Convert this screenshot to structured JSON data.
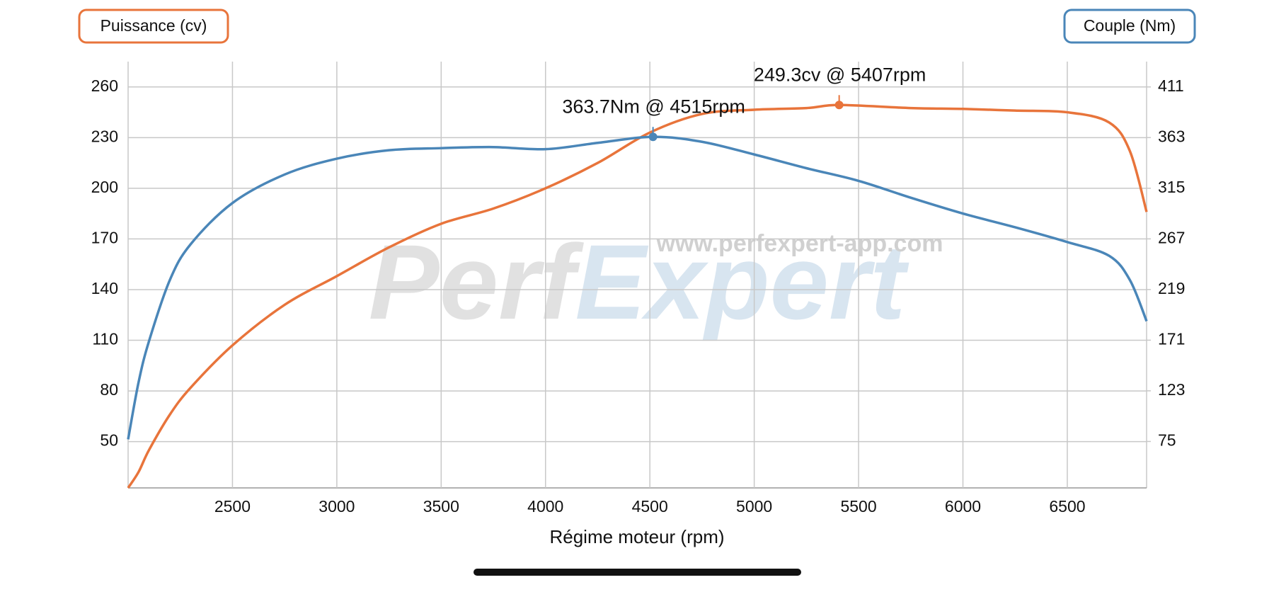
{
  "chart_data": {
    "type": "line",
    "left_axis_label": "Puissance (cv)",
    "right_axis_label": "Couple (Nm)",
    "x_label": "Régime moteur (rpm)",
    "watermark": [
      "Perf",
      "Expert"
    ],
    "watermark_url": "www.perfexpert-app.com",
    "xlim": [
      2000,
      6880
    ],
    "xticks": [
      2500,
      3000,
      3500,
      4000,
      4500,
      5000,
      5500,
      6000,
      6500
    ],
    "ylim": [
      22.6,
      275
    ],
    "yticks": [
      50,
      80,
      110,
      140,
      170,
      200,
      230,
      260
    ],
    "y2lim": [
      31,
      435
    ],
    "y2ticks": [
      75,
      123,
      171,
      219,
      267,
      315,
      363,
      411
    ],
    "grid": true,
    "series": [
      {
        "name": "Puissance (cv)",
        "color": "#e8743b",
        "x": [
          2000,
          2050,
          2100,
          2200,
          2300,
          2500,
          2750,
          3000,
          3250,
          3500,
          3750,
          4000,
          4250,
          4500,
          4750,
          5000,
          5250,
          5407,
          5750,
          6000,
          6250,
          6500,
          6700,
          6800,
          6880
        ],
        "values": [
          22.6,
          32,
          45,
          66,
          82,
          107,
          131,
          148,
          165,
          179,
          188,
          200,
          215,
          233,
          244,
          246.5,
          247.5,
          249.3,
          247.5,
          247,
          246,
          245,
          239,
          222,
          186
        ]
      },
      {
        "name": "Couple (Nm)",
        "color": "#4a86b8",
        "axis": "y2",
        "x": [
          2000,
          2050,
          2100,
          2200,
          2300,
          2500,
          2750,
          3000,
          3250,
          3500,
          3750,
          4000,
          4250,
          4515,
          4750,
          5000,
          5250,
          5500,
          5750,
          6000,
          6250,
          6500,
          6700,
          6800,
          6880
        ],
        "values": [
          77,
          131,
          170,
          228,
          262,
          301,
          328,
          343,
          351,
          353,
          354,
          352,
          358,
          363.7,
          359,
          347,
          334,
          322,
          306,
          291,
          278,
          264,
          251,
          228,
          189
        ]
      }
    ],
    "annotations": [
      {
        "text": "249.3cv @ 5407rpm",
        "x": 5407,
        "y": 249.3,
        "color": "#e8743b"
      },
      {
        "text": "363.7Nm @ 4515rpm",
        "x": 4515,
        "y": 363.7,
        "axis": "y2",
        "color": "#4a86b8"
      }
    ]
  }
}
